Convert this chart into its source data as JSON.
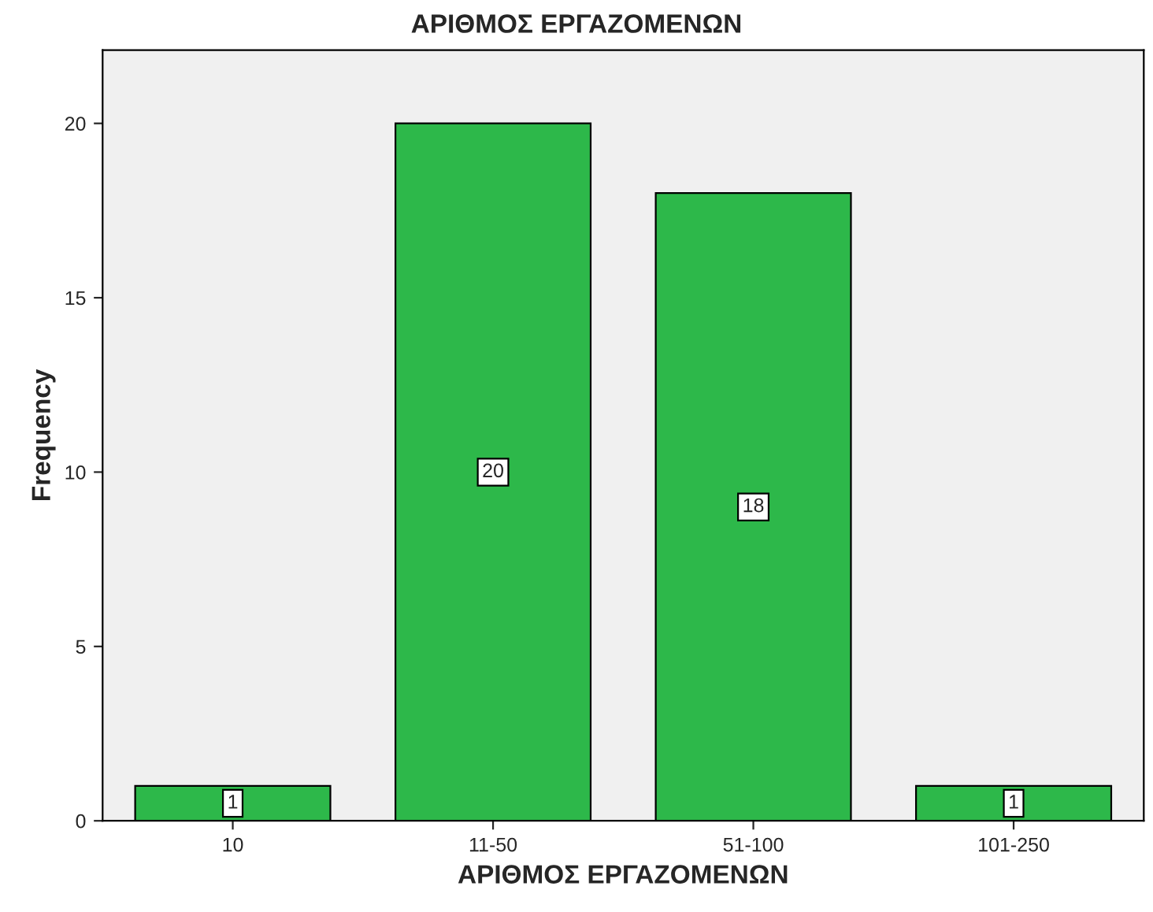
{
  "chart_data": {
    "type": "bar",
    "title": "ΑΡΙΘΜΟΣ ΕΡΓΑΖΟΜΕΝΩΝ",
    "xlabel": "ΑΡΙΘΜΟΣ ΕΡΓΑΖΟΜΕΝΩΝ",
    "ylabel": "Frequency",
    "categories": [
      "10",
      "11-50",
      "51-100",
      "101-250"
    ],
    "values": [
      1,
      20,
      18,
      1
    ],
    "color": "#2db84a",
    "ylim": [
      0,
      22.1
    ],
    "yticks": [
      0,
      5,
      10,
      15,
      20
    ],
    "grid": false,
    "data_labels": true
  }
}
